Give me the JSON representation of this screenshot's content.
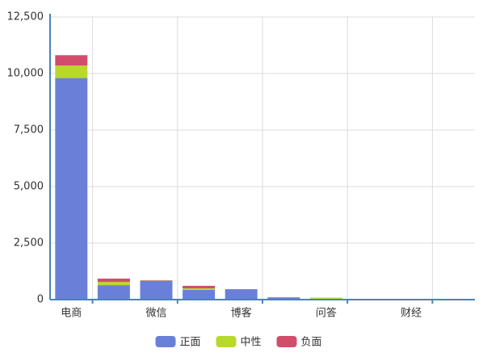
{
  "chart_data": {
    "type": "bar",
    "stacked": true,
    "categories": [
      "电商",
      null,
      "微信",
      null,
      "博客",
      null,
      "问答",
      null,
      "财经",
      null
    ],
    "series": [
      {
        "name": "正面",
        "color": "#6a80d8",
        "values": [
          9800,
          640,
          830,
          430,
          460,
          100,
          40,
          15,
          10,
          8
        ]
      },
      {
        "name": "中性",
        "color": "#b9d92a",
        "values": [
          550,
          140,
          10,
          70,
          0,
          5,
          40,
          5,
          3,
          2
        ]
      },
      {
        "name": "负面",
        "color": "#d24d6c",
        "values": [
          460,
          150,
          20,
          110,
          5,
          5,
          5,
          2,
          2,
          1
        ]
      }
    ],
    "ylim": [
      0,
      12500
    ],
    "yticks": [
      0,
      {
        "value": 2500,
        "label": "2,500"
      },
      {
        "value": 5000,
        "label": "5,000"
      },
      {
        "value": 7500,
        "label": "7,500"
      },
      {
        "value": 10000,
        "label": "10,000"
      },
      {
        "value": 12500,
        "label": "12,500"
      }
    ],
    "grid": true,
    "legend": "bottom"
  }
}
